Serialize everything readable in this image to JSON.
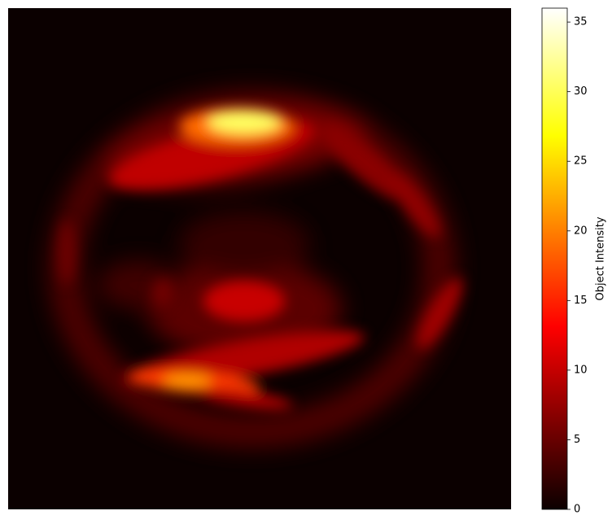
{
  "chart_data": {
    "type": "heatmap",
    "colormap": "hot",
    "colorbar_label": "Object Intensity",
    "clim": [
      0,
      36
    ],
    "cticks": [
      0,
      5,
      10,
      15,
      20,
      25,
      30,
      35
    ]
  }
}
